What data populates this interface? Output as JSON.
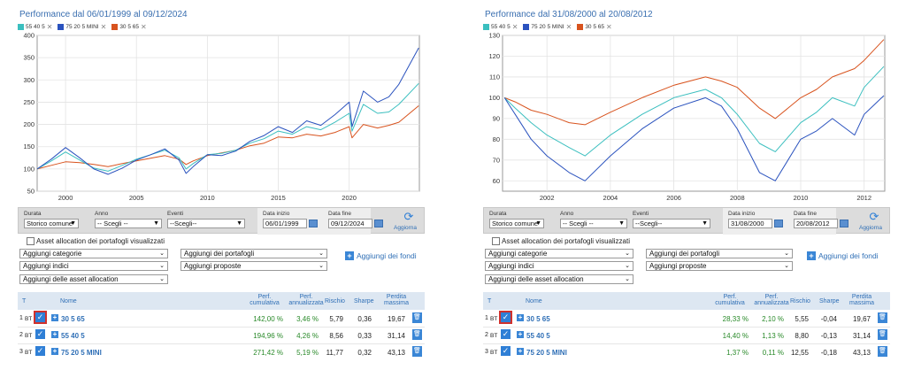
{
  "panels": [
    {
      "title": "Performance dal 06/01/1999 al 09/12/2024",
      "legend": [
        {
          "name": "55 40 5",
          "color": "#3bbfbf"
        },
        {
          "name": "75 20 5 MINI",
          "color": "#2a52be"
        },
        {
          "name": "30 5 65",
          "color": "#d8531e"
        }
      ],
      "chart_data": {
        "type": "line",
        "title": "Performance dal 06/01/1999 al 09/12/2024",
        "xlim": [
          1998.0,
          2024.95
        ],
        "ylim": [
          50,
          400
        ],
        "x_ticks": [
          "2000",
          "2005",
          "2010",
          "2015",
          "2020"
        ],
        "x_tick_values": [
          2000,
          2005,
          2010,
          2015,
          2020
        ],
        "y_ticks": [
          "50",
          "100",
          "150",
          "200",
          "250",
          "300",
          "350",
          "400"
        ],
        "y_tick_values": [
          50,
          100,
          150,
          200,
          250,
          300,
          350,
          400
        ],
        "grid": true,
        "series": [
          {
            "name": "30 5 65",
            "color": "#d8531e",
            "x": [
              1998.0,
              1999.0,
              2000.0,
              2001.0,
              2002.0,
              2003.0,
              2004.0,
              2005.0,
              2006.0,
              2007.0,
              2008.0,
              2008.5,
              2009.0,
              2010.0,
              2011.0,
              2012.0,
              2013.0,
              2014.0,
              2015.0,
              2016.0,
              2017.0,
              2018.0,
              2019.0,
              2020.0,
              2020.2,
              2021.0,
              2022.0,
              2022.8,
              2023.5,
              2024.9
            ],
            "values": [
              100,
              108,
              116,
              114,
              110,
              105,
              112,
              118,
              124,
              130,
              122,
              110,
              118,
              130,
              136,
              142,
              152,
              158,
              172,
              170,
              178,
              174,
              182,
              195,
              170,
              200,
              192,
              198,
              205,
              242
            ]
          },
          {
            "name": "55 40 5",
            "color": "#3bbfbf",
            "x": [
              1998.0,
              1999.0,
              2000.0,
              2001.0,
              2002.0,
              2003.0,
              2004.0,
              2005.0,
              2006.0,
              2007.0,
              2008.0,
              2008.5,
              2009.0,
              2010.0,
              2011.0,
              2012.0,
              2013.0,
              2014.0,
              2015.0,
              2016.0,
              2017.0,
              2018.0,
              2019.0,
              2020.0,
              2020.2,
              2021.0,
              2022.0,
              2022.8,
              2023.5,
              2024.9
            ],
            "values": [
              100,
              118,
              138,
              120,
              102,
              95,
              108,
              122,
              132,
              142,
              125,
              100,
              112,
              132,
              135,
              142,
              158,
              168,
              185,
              178,
              195,
              188,
              205,
              225,
              185,
              245,
              225,
              228,
              245,
              292
            ]
          },
          {
            "name": "75 20 5 MINI",
            "color": "#2a52be",
            "x": [
              1998.0,
              1999.0,
              2000.0,
              2001.0,
              2002.0,
              2003.0,
              2004.0,
              2005.0,
              2006.0,
              2007.0,
              2008.0,
              2008.5,
              2009.0,
              2010.0,
              2011.0,
              2012.0,
              2013.0,
              2014.0,
              2015.0,
              2016.0,
              2017.0,
              2018.0,
              2019.0,
              2020.0,
              2020.2,
              2021.0,
              2022.0,
              2022.8,
              2023.5,
              2024.9
            ],
            "values": [
              100,
              122,
              148,
              125,
              100,
              88,
              102,
              120,
              132,
              145,
              120,
              90,
              105,
              132,
              130,
              140,
              162,
              175,
              195,
              182,
              208,
              198,
              222,
              250,
              195,
              275,
              250,
              262,
              290,
              372
            ]
          }
        ]
      },
      "controls": {
        "durata_label": "Durata",
        "durata_value": "Storico comune",
        "anno_label": "Anno",
        "anno_value": "-- Scegli --",
        "eventi_label": "Eventi",
        "eventi_value": "--Scegli--",
        "data_inizio_label": "Data inizio",
        "data_inizio_value": "06/01/1999",
        "data_fine_label": "Data fine",
        "data_fine_value": "09/12/2024",
        "aggiorna_label": "Aggiorna"
      },
      "checkbox_label": "Asset allocation dei portafogli visualizzati",
      "dropdowns": [
        "Aggiungi categorie",
        "Aggiungi dei portafogli",
        "Aggiungi indici",
        "Aggiungi proposte",
        "Aggiungi delle asset allocation"
      ],
      "add_funds": "Aggiungi dei fondi",
      "headers": {
        "t": "T",
        "nome": "Nome",
        "perf_cum": "Perf. cumulativa",
        "perf_ann": "Perf. annualizzata",
        "rischio": "Rischio",
        "sharpe": "Sharpe",
        "perdita": "Perdita massima"
      },
      "rows": [
        {
          "rank": "1",
          "type": "BT",
          "name": "30 5 65",
          "perf_cum": "142,00 %",
          "perf_ann": "3,46 %",
          "rischio": "5,79",
          "sharpe": "0,36",
          "perdita": "19,67",
          "selected": true
        },
        {
          "rank": "2",
          "type": "BT",
          "name": "55 40 5",
          "perf_cum": "194,96 %",
          "perf_ann": "4,26 %",
          "rischio": "8,56",
          "sharpe": "0,33",
          "perdita": "31,14",
          "selected": false
        },
        {
          "rank": "3",
          "type": "BT",
          "name": "75 20 5 MINI",
          "perf_cum": "271,42 %",
          "perf_ann": "5,19 %",
          "rischio": "11,77",
          "sharpe": "0,32",
          "perdita": "43,13",
          "selected": false
        }
      ]
    },
    {
      "title": "Performance dal 31/08/2000 al 20/08/2012",
      "legend": [
        {
          "name": "55 40 5",
          "color": "#3bbfbf"
        },
        {
          "name": "75 20 5 MINI",
          "color": "#2a52be"
        },
        {
          "name": "30 5 65",
          "color": "#d8531e"
        }
      ],
      "chart_data": {
        "type": "line",
        "title": "Performance dal 31/08/2000 al 20/08/2012",
        "xlim": [
          2000.6,
          2012.65
        ],
        "ylim": [
          55,
          130
        ],
        "x_ticks": [
          "2002",
          "2004",
          "2006",
          "2008",
          "2010",
          "2012"
        ],
        "x_tick_values": [
          2002,
          2004,
          2006,
          2008,
          2010,
          2012
        ],
        "y_ticks": [
          "60",
          "70",
          "80",
          "90",
          "100",
          "110",
          "120",
          "130"
        ],
        "y_tick_values": [
          60,
          70,
          80,
          90,
          100,
          110,
          120,
          130
        ],
        "grid": true,
        "series": [
          {
            "name": "30 5 65",
            "color": "#d8531e",
            "x": [
              2000.66,
              2001.0,
              2001.5,
              2002.0,
              2002.7,
              2003.2,
              2004.0,
              2005.0,
              2006.0,
              2007.0,
              2007.5,
              2008.0,
              2008.7,
              2009.2,
              2010.0,
              2010.5,
              2011.0,
              2011.7,
              2012.0,
              2012.62
            ],
            "values": [
              100,
              98,
              94,
              92,
              88,
              87,
              93,
              100,
              106,
              110,
              108,
              105,
              95,
              90,
              100,
              104,
              110,
              114,
              118,
              128
            ]
          },
          {
            "name": "55 40 5",
            "color": "#3bbfbf",
            "x": [
              2000.66,
              2001.0,
              2001.5,
              2002.0,
              2002.7,
              2003.2,
              2004.0,
              2005.0,
              2006.0,
              2007.0,
              2007.5,
              2008.0,
              2008.7,
              2009.2,
              2010.0,
              2010.5,
              2011.0,
              2011.7,
              2012.0,
              2012.62
            ],
            "values": [
              100,
              95,
              88,
              82,
              76,
              72,
              82,
              92,
              100,
              104,
              100,
              92,
              78,
              74,
              88,
              93,
              100,
              96,
              105,
              115
            ]
          },
          {
            "name": "75 20 5 MINI",
            "color": "#2a52be",
            "x": [
              2000.66,
              2001.0,
              2001.5,
              2002.0,
              2002.7,
              2003.2,
              2004.0,
              2005.0,
              2006.0,
              2007.0,
              2007.5,
              2008.0,
              2008.7,
              2009.2,
              2010.0,
              2010.5,
              2011.0,
              2011.7,
              2012.0,
              2012.62
            ],
            "values": [
              100,
              92,
              80,
              72,
              64,
              60,
              72,
              85,
              95,
              100,
              96,
              85,
              64,
              60,
              80,
              84,
              90,
              82,
              92,
              101
            ]
          }
        ]
      },
      "controls": {
        "durata_label": "Durata",
        "durata_value": "Storico comune",
        "anno_label": "Anno",
        "anno_value": "-- Scegli --",
        "eventi_label": "Eventi",
        "eventi_value": "--Scegli--",
        "data_inizio_label": "Data inizio",
        "data_inizio_value": "31/08/2000",
        "data_fine_label": "Data fine",
        "data_fine_value": "20/08/2012",
        "aggiorna_label": "Aggiorna"
      },
      "checkbox_label": "Asset allocation dei portafogli visualizzati",
      "dropdowns": [
        "Aggiungi categorie",
        "Aggiungi dei portafogli",
        "Aggiungi indici",
        "Aggiungi proposte",
        "Aggiungi delle asset allocation"
      ],
      "add_funds": "Aggiungi dei fondi",
      "headers": {
        "t": "T",
        "nome": "Nome",
        "perf_cum": "Perf. cumulativa",
        "perf_ann": "Perf. annualizzata",
        "rischio": "Rischio",
        "sharpe": "Sharpe",
        "perdita": "Perdita massima"
      },
      "rows": [
        {
          "rank": "1",
          "type": "BT",
          "name": "30 5 65",
          "perf_cum": "28,33 %",
          "perf_ann": "2,10 %",
          "rischio": "5,55",
          "sharpe": "-0,04",
          "perdita": "19,67",
          "selected": true
        },
        {
          "rank": "2",
          "type": "BT",
          "name": "55 40 5",
          "perf_cum": "14,40 %",
          "perf_ann": "1,13 %",
          "rischio": "8,80",
          "sharpe": "-0,13",
          "perdita": "31,14",
          "selected": false
        },
        {
          "rank": "3",
          "type": "BT",
          "name": "75 20 5 MINI",
          "perf_cum": "1,37 %",
          "perf_ann": "0,11 %",
          "rischio": "12,55",
          "sharpe": "-0,18",
          "perdita": "43,13",
          "selected": false
        }
      ]
    }
  ]
}
